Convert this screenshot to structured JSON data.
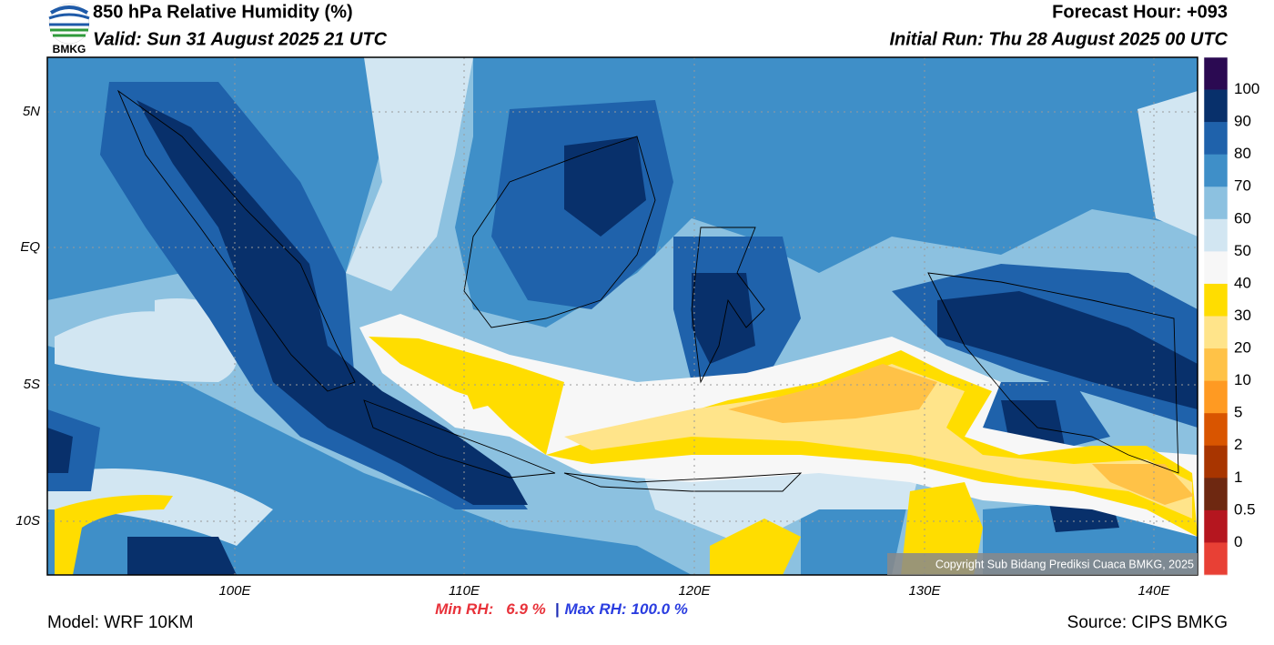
{
  "header": {
    "logo_text": "BMKG",
    "title": "850 hPa Relative Humidity (%)",
    "valid": "Valid: Sun 31 August 2025 21 UTC",
    "forecast_hour": "Forecast Hour: +093",
    "initial_run": "Initial Run: Thu 28 August 2025 00 UTC"
  },
  "map": {
    "lat_labels": [
      "5N",
      "EQ",
      "5S",
      "10S"
    ],
    "lon_labels": [
      "100E",
      "110E",
      "120E",
      "130E",
      "140E"
    ],
    "copyright": "Copyright Sub Bidang Prediksi Cuaca BMKG, 2025"
  },
  "colorbar": {
    "labels": [
      "100",
      "90",
      "80",
      "70",
      "60",
      "50",
      "40",
      "30",
      "20",
      "10",
      "5",
      "2",
      "1",
      "0.5",
      "0"
    ],
    "colors": [
      "#2b0a52",
      "#08306b",
      "#1f62ab",
      "#3f8fc8",
      "#8cc1e0",
      "#d2e6f2",
      "#f7f7f7",
      "#ffdd00",
      "#ffe48a",
      "#ffc247",
      "#ff9a22",
      "#d95500",
      "#a83500",
      "#6e2811",
      "#b5161f",
      "#e84035"
    ]
  },
  "stats": {
    "min_label": "Min RH:",
    "min_value": "6.9 %",
    "separator": "|",
    "max_label": "Max RH:",
    "max_value": "100.0 %"
  },
  "footer": {
    "model": "Model: WRF 10KM",
    "source": "Source: CIPS BMKG"
  }
}
